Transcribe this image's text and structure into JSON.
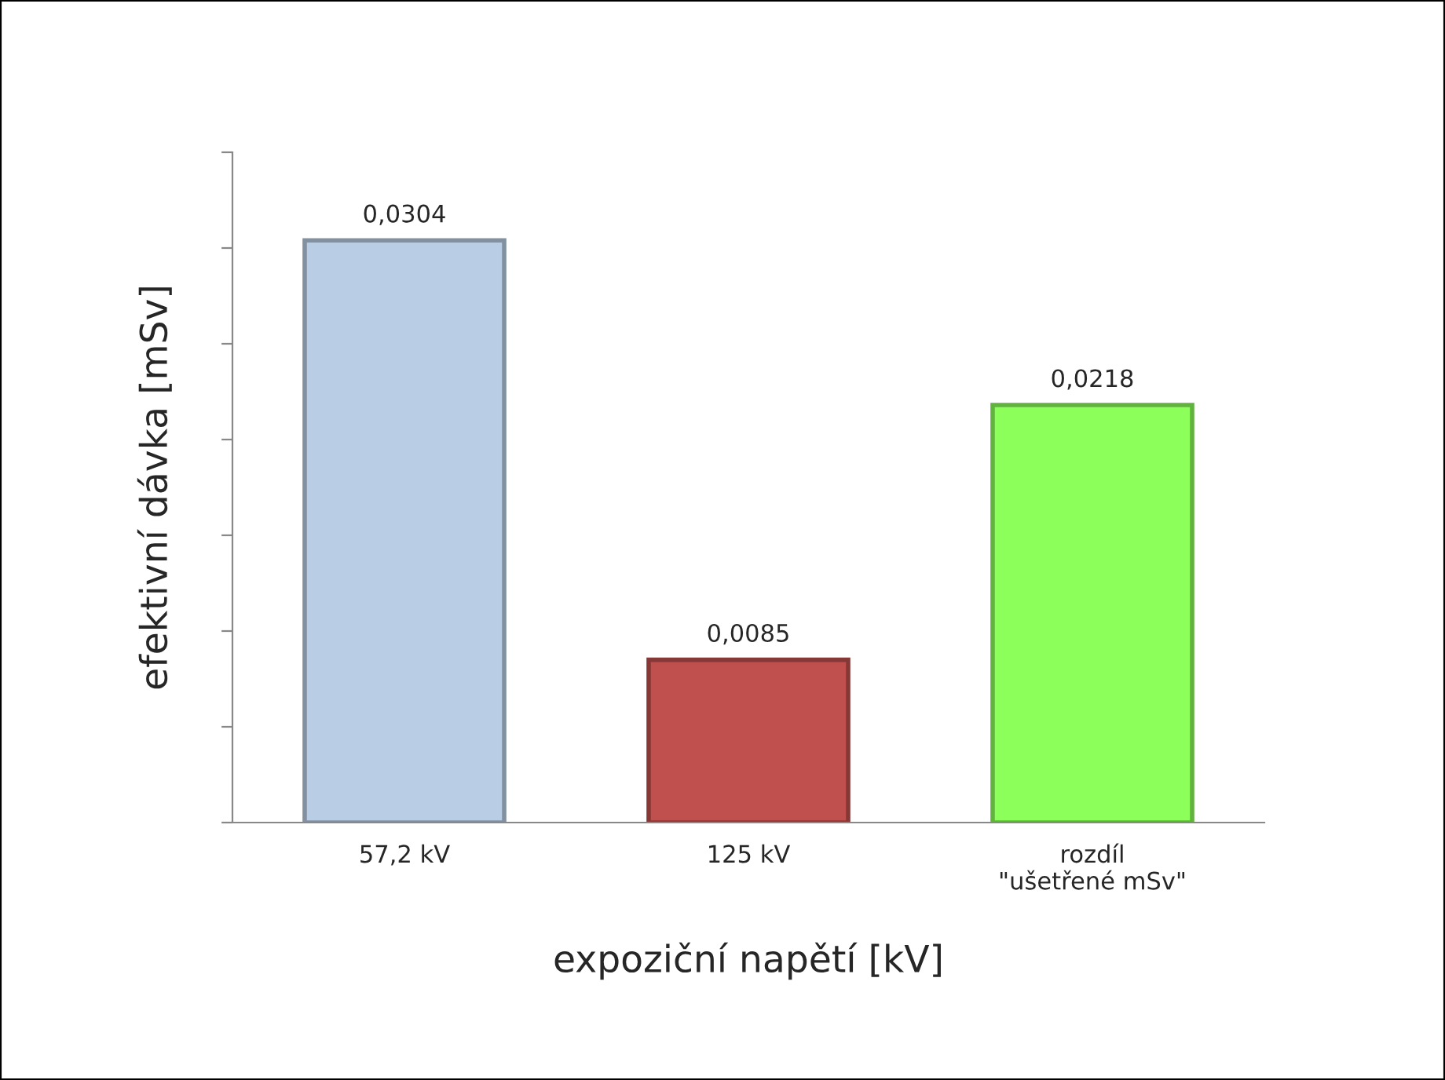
{
  "chart_data": {
    "type": "bar",
    "xlabel": "expoziční napětí [kV]",
    "ylabel": "efektivní dávka [mSv]",
    "categories": [
      "57,2 kV",
      "125 kV",
      "rozdíl\n\"ušetřené mSv\""
    ],
    "values": [
      0.0304,
      0.0085,
      0.0218
    ],
    "value_labels": [
      "0,0304",
      "0,0085",
      "0,0218"
    ],
    "colors": [
      "#b9cde5",
      "#c0504d",
      "#8cff5a"
    ],
    "ylim": [
      0,
      0.035
    ],
    "yticks": [
      {
        "value": 0,
        "label": null
      },
      {
        "value": 0.005,
        "label": null
      },
      {
        "value": 0.01,
        "label": null
      },
      {
        "value": 0.015,
        "label": null
      },
      {
        "value": 0.02,
        "label": null
      },
      {
        "value": 0.025,
        "label": null
      },
      {
        "value": 0.03,
        "label": null
      },
      {
        "value": 0.035,
        "label": null
      }
    ],
    "tick_labels": "x",
    "grid": false,
    "legend": false
  }
}
